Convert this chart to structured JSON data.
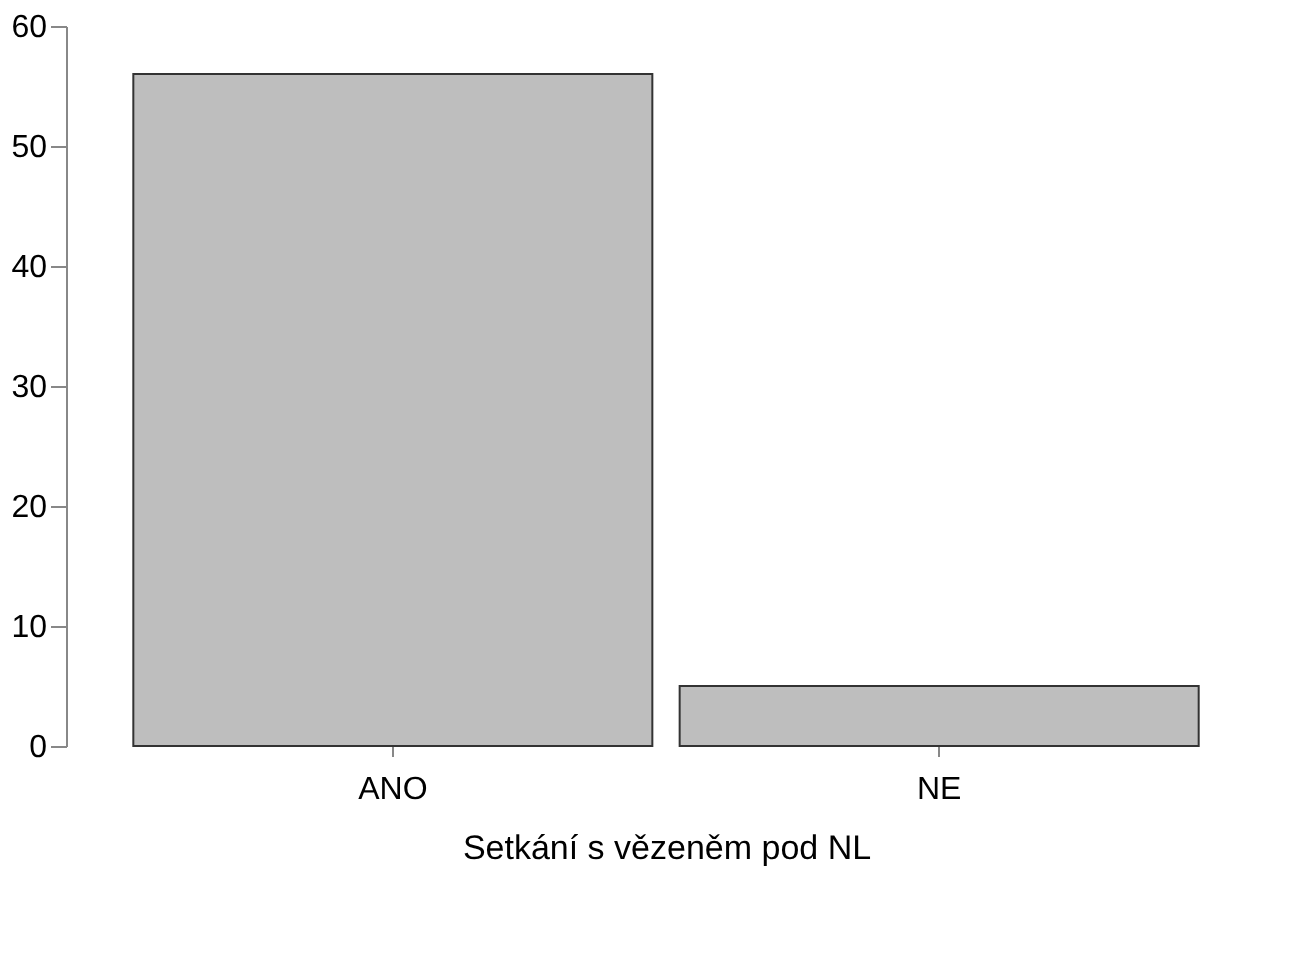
{
  "chart_data": {
    "type": "bar",
    "xlabel": "Setkání s vězeněm pod NL",
    "categories": [
      "ANO",
      "NE"
    ],
    "values": [
      56,
      5
    ],
    "color": "#bebebe",
    "ylim": [
      0,
      60
    ],
    "yticks": [
      0,
      10,
      20,
      30,
      40,
      50,
      60
    ],
    "grid": false
  }
}
